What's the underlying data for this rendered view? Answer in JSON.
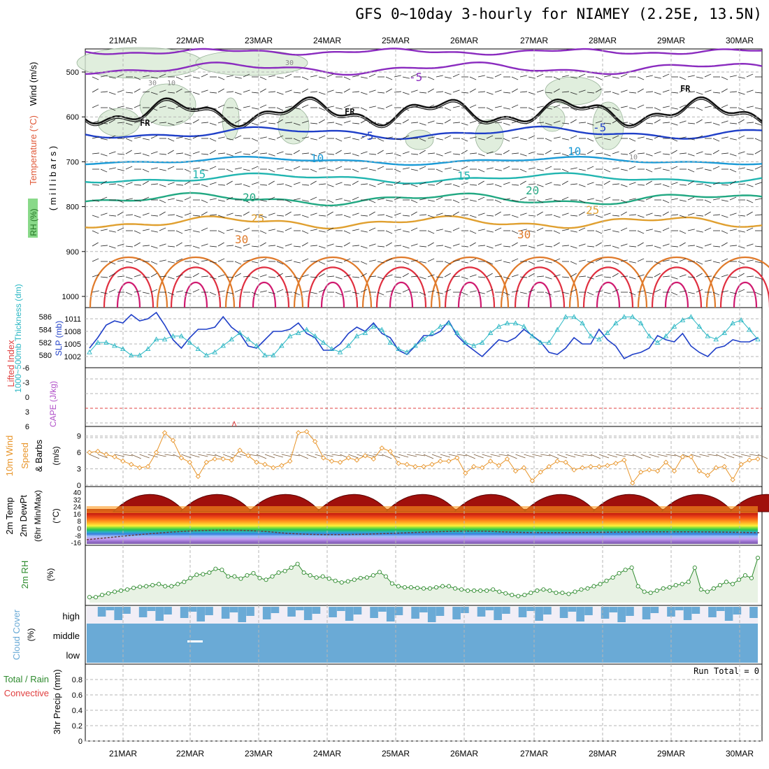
{
  "title": "GFS 0~10day 3-hourly for NIAMEY (2.25E, 13.5N)",
  "days": [
    "21MAR",
    "22MAR",
    "23MAR",
    "24MAR",
    "25MAR",
    "26MAR",
    "27MAR",
    "28MAR",
    "29MAR",
    "30MAR"
  ],
  "colors": {
    "grid": "#b5b5b5",
    "slp": "#1f3fc8",
    "thickness": "#2bb7c4",
    "wind10m": "#e8952a",
    "rh2m": "#2e8b2e",
    "rh2m_fill": "#e8f2e4",
    "cloud": "#6aaad6",
    "cloud_bg": "#f1eef6",
    "li_zero": "#e04040",
    "cape": "#b050c8"
  },
  "panels": {
    "upper": {
      "ylabel_parts": [
        "RH (%)",
        "Temperature (°C)",
        "Wind (m/s)"
      ],
      "yunit": "( m i l l i b a r s )",
      "levels": [
        "500",
        "600",
        "700",
        "800",
        "900",
        "1000"
      ],
      "contour_labels": [
        "-5",
        "-5",
        "-5",
        "10",
        "10",
        "15",
        "15",
        "20",
        "20",
        "25",
        "25",
        "30",
        "30",
        "FR",
        "FR",
        "FR",
        "30",
        "10",
        "30",
        "10"
      ]
    },
    "slp_thick": {
      "ylabel_left": "1000~500mb Thickness (dm)",
      "ylabel_right": "SLP (mb)",
      "left_ticks": [
        "586",
        "584",
        "582",
        "580"
      ],
      "right_ticks": [
        "1011",
        "1008",
        "1005",
        "1002"
      ]
    },
    "li_cape": {
      "ylabel_left": "Lifted Index",
      "ylabel_right": "CAPE (J/kg)",
      "ticks": [
        "-6",
        "-3",
        "0",
        "3",
        "6"
      ]
    },
    "wind10m": {
      "ylabel": "10m Wind Speed & Barbs",
      "yunit": "(m/s)",
      "ticks": [
        "9",
        "6",
        "3",
        "0"
      ]
    },
    "temp2m": {
      "ylabel": "2m Temp 2m DewPt (6hr Min/Max)",
      "yunit": "(°C)",
      "ticks": [
        "40",
        "32",
        "24",
        "16",
        "8",
        "0",
        "-8",
        "-16"
      ],
      "extra_ticks": [
        "36",
        "28",
        "20",
        "12",
        "4",
        "-4",
        "-12"
      ]
    },
    "rh2m": {
      "ylabel": "2m RH",
      "yunit": "(%)"
    },
    "cloud": {
      "ylabel": "Cloud Cover",
      "yunit": "(%)",
      "levels": [
        "high",
        "middle",
        "low"
      ]
    },
    "precip": {
      "ylabel_parts": [
        "Total / Rain",
        "Convective",
        "3hr Precip (mm)"
      ],
      "ticks": [
        "0.8",
        "0.6",
        "0.4",
        "0.2",
        "0"
      ],
      "run_total": "Run Total = 0"
    }
  },
  "chart_data": [
    {
      "type": "line",
      "name": "slp",
      "ylim": [
        1000,
        1013
      ],
      "x_start": "20MAR 12Z",
      "x_step_hours": 3,
      "values": [
        1004,
        1006.5,
        1009.5,
        1010.5,
        1010,
        1012,
        1010.5,
        1011,
        1012.5,
        1009.5,
        1006,
        1004,
        1006.5,
        1008.5,
        1008.5,
        1009,
        1011.5,
        1009,
        1007.5,
        1004.5,
        1004,
        1006,
        1008,
        1008,
        1008.5,
        1010,
        1007.5,
        1006.5,
        1003.5,
        1003.5,
        1005,
        1007.5,
        1009,
        1008,
        1010,
        1007.5,
        1006.5,
        1003.5,
        1002.5,
        1004.5,
        1007,
        1007,
        1008,
        1010.5,
        1007,
        1005,
        1003.5,
        1002,
        1004,
        1006,
        1005.5,
        1006.5,
        1008.5,
        1007,
        1005.5,
        1003,
        1002.5,
        1004,
        1006.5,
        1005,
        1005,
        1008.5,
        1006,
        1004.5,
        1001.5,
        1002.5,
        1003,
        1004,
        1007,
        1006,
        1005.5,
        1007.5,
        1004.5,
        1003,
        1002,
        1004,
        1004.5,
        1006,
        1005.5,
        1005.5,
        1006.5
      ]
    },
    {
      "type": "line",
      "name": "thickness",
      "ylim": [
        578.5,
        587
      ],
      "values": [
        580.5,
        582,
        582,
        581.5,
        581,
        580,
        580,
        581,
        582.5,
        582.5,
        583,
        583,
        582,
        581,
        580,
        580.5,
        581.5,
        582.5,
        583.5,
        582.5,
        581.5,
        580,
        580,
        581.5,
        583,
        583.5,
        584,
        583,
        582,
        581,
        580.5,
        581.5,
        583,
        583.5,
        584.5,
        584,
        582,
        581,
        580.5,
        581.5,
        582.5,
        583.5,
        584.5,
        585,
        583.5,
        582,
        581.5,
        582,
        583.5,
        584.5,
        585,
        585,
        584.5,
        583,
        582,
        582,
        584,
        586,
        586,
        585,
        583,
        582.5,
        583.5,
        585,
        586,
        586,
        585,
        583,
        582,
        583,
        584.5,
        585.5,
        586,
        584.5,
        583,
        582.5,
        583.5,
        585,
        585.5,
        584,
        582.5
      ]
    },
    {
      "type": "line",
      "name": "wind10m_speed",
      "ylim": [
        0,
        10.5
      ],
      "values": [
        6,
        6.2,
        5.6,
        5.2,
        4.4,
        3.8,
        3.2,
        3.4,
        6,
        9.6,
        8.2,
        5,
        4.2,
        1.6,
        4.2,
        4.8,
        4.8,
        4.6,
        6.4,
        5.4,
        4.2,
        3.8,
        3.2,
        3.6,
        4.4,
        9.6,
        9.8,
        8,
        5,
        4.4,
        4.2,
        5,
        4.6,
        5.4,
        4.8,
        6.8,
        6.2,
        4,
        3.8,
        3.4,
        3.4,
        3.8,
        4.4,
        4.4,
        5,
        2.2,
        3.4,
        3.2,
        4.4,
        3.6,
        4.8,
        2.6,
        3.2,
        0.8,
        2.4,
        3.4,
        4.4,
        4.2,
        2.8,
        3.2,
        3.4,
        3.4,
        3.6,
        4,
        4.6,
        0.4,
        2.4,
        2.8,
        2.6,
        4.2,
        2.6,
        5.2,
        5.2,
        2.6,
        1.8,
        3.2,
        3.4,
        1,
        3.8,
        4.6,
        4.8
      ]
    },
    {
      "type": "area",
      "name": "rh2m",
      "ylim": [
        0,
        100
      ],
      "values": [
        10,
        10,
        14,
        17,
        20,
        22,
        24,
        27,
        29,
        30,
        32,
        34,
        30,
        30,
        34,
        38,
        45,
        51,
        52,
        55,
        62,
        60,
        48,
        48,
        44,
        50,
        54,
        45,
        42,
        48,
        55,
        58,
        64,
        71,
        55,
        50,
        46,
        48,
        44,
        40,
        37,
        39,
        42,
        45,
        46,
        50,
        56,
        48,
        35,
        30,
        28,
        28,
        27,
        26,
        26,
        28,
        30,
        30,
        26,
        24,
        22,
        22,
        22,
        22,
        24,
        20,
        17,
        14,
        12,
        14,
        18,
        22,
        24,
        22,
        18,
        18,
        16,
        20,
        24,
        26,
        30,
        34,
        40,
        46,
        54,
        60,
        64,
        30,
        20,
        18,
        22,
        26,
        28,
        32,
        34,
        38,
        64,
        24,
        20,
        26,
        32,
        38,
        34,
        42,
        50,
        45,
        82
      ]
    }
  ]
}
